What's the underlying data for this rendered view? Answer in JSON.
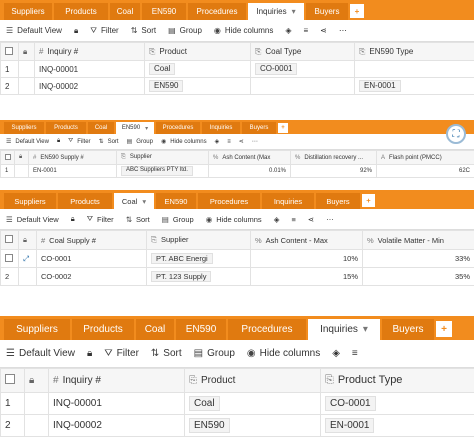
{
  "panel1": {
    "tabs": [
      "Suppliers",
      "Products",
      "Coal",
      "EN590",
      "Procedures",
      "Inquiries",
      "Buyers"
    ],
    "active_tab": "Inquiries",
    "toolbar": [
      "Default View",
      "Filter",
      "Sort",
      "Group",
      "Hide columns"
    ],
    "columns": [
      "Inquiry #",
      "Product",
      "Coal Type",
      "EN590 Type"
    ],
    "rows": [
      {
        "num": "1",
        "inquiry": "INQ-00001",
        "product": "Coal",
        "coal_type": "CO-0001",
        "en590_type": ""
      },
      {
        "num": "2",
        "inquiry": "INQ-00002",
        "product": "EN590",
        "coal_type": "",
        "en590_type": "EN-0001"
      }
    ]
  },
  "panel2": {
    "tabs": [
      "Suppliers",
      "Products",
      "Coal",
      "EN590",
      "Procedures",
      "Inquiries",
      "Buyers"
    ],
    "active_tab": "EN590",
    "toolbar": [
      "Default View",
      "Filter",
      "Sort",
      "Group",
      "Hide columns"
    ],
    "columns": [
      "EN590 Supply #",
      "Supplier",
      "Ash Content (Max",
      "Distillation recovery ...",
      "Flash point (PMCC)"
    ],
    "rows": [
      {
        "num": "1",
        "supply": "EN-0001",
        "supplier": "ABC Suppliers PTY ltd.",
        "ash": "0.01%",
        "distillation": "92%",
        "flash": "62C"
      }
    ]
  },
  "panel3": {
    "tabs": [
      "Suppliers",
      "Products",
      "Coal",
      "EN590",
      "Procedures",
      "Inquiries",
      "Buyers"
    ],
    "active_tab": "Coal",
    "toolbar": [
      "Default View",
      "Filter",
      "Sort",
      "Group",
      "Hide columns"
    ],
    "columns": [
      "Coal Supply #",
      "Supplier",
      "Ash Content - Max",
      "Volatile Matter - Min"
    ],
    "rows": [
      {
        "num": "1",
        "supply": "CO-0001",
        "supplier": "PT. ABC Energi",
        "ash": "10%",
        "volatile": "33%"
      },
      {
        "num": "2",
        "supply": "CO-0002",
        "supplier": "PT. 123 Supply",
        "ash": "15%",
        "volatile": "35%"
      }
    ]
  },
  "panel4": {
    "tabs": [
      "Suppliers",
      "Products",
      "Coal",
      "EN590",
      "Procedures",
      "Inquiries",
      "Buyers"
    ],
    "active_tab": "Inquiries",
    "toolbar": [
      "Default View",
      "Filter",
      "Sort",
      "Group",
      "Hide columns"
    ],
    "columns": [
      "Inquiry #",
      "Product",
      "Product Type"
    ],
    "rows": [
      {
        "num": "1",
        "inquiry": "INQ-00001",
        "product": "Coal",
        "type": "CO-0001"
      },
      {
        "num": "2",
        "inquiry": "INQ-00002",
        "product": "EN590",
        "type": "EN-0001"
      }
    ]
  },
  "colors": {
    "accent": "#f28c1e",
    "tab_inactive": "#e07a10"
  }
}
